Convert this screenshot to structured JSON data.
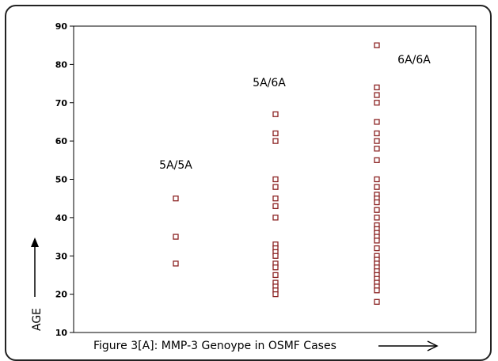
{
  "chart_data": {
    "type": "scatter",
    "xlabel": "Figure 3[A]: MMP-3 Genoype in OSMF Cases",
    "ylabel": "AGE",
    "ylim": [
      10,
      90
    ],
    "yticks": [
      10,
      20,
      30,
      40,
      50,
      60,
      70,
      80,
      90
    ],
    "grid": false,
    "legend": "none",
    "marker_color": "#8b2323",
    "series": [
      {
        "label": "5A/5A",
        "values": [
          45,
          35,
          28
        ]
      },
      {
        "label": "5A/6A",
        "values": [
          67,
          62,
          60,
          50,
          48,
          45,
          43,
          40,
          33,
          32,
          31,
          30,
          28,
          27,
          25,
          23,
          22,
          21,
          20
        ]
      },
      {
        "label": "6A/6A",
        "values": [
          85,
          74,
          72,
          70,
          65,
          62,
          60,
          58,
          55,
          50,
          48,
          46,
          45,
          44,
          42,
          40,
          38,
          37,
          36,
          35,
          34,
          32,
          30,
          29,
          28,
          27,
          26,
          25,
          24,
          23,
          22,
          21,
          18
        ]
      }
    ]
  }
}
